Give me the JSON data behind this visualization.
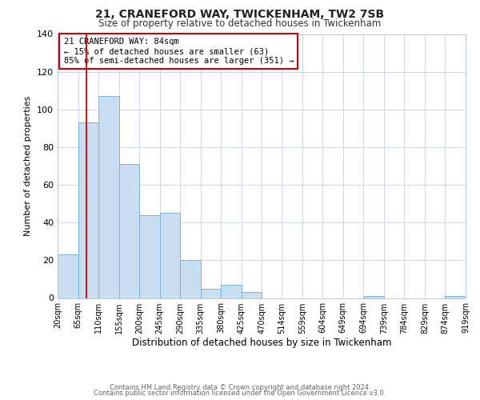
{
  "title": "21, CRANEFORD WAY, TWICKENHAM, TW2 7SB",
  "subtitle": "Size of property relative to detached houses in Twickenham",
  "xlabel": "Distribution of detached houses by size in Twickenham",
  "ylabel": "Number of detached properties",
  "bar_color": "#c9def0",
  "bar_edge_color": "#7ab4d8",
  "bins": [
    20,
    65,
    110,
    155,
    200,
    245,
    290,
    335,
    380,
    425,
    470,
    514,
    559,
    604,
    649,
    694,
    739,
    784,
    829,
    874,
    919
  ],
  "counts": [
    23,
    93,
    107,
    71,
    44,
    45,
    20,
    5,
    7,
    3,
    0,
    0,
    0,
    0,
    0,
    1,
    0,
    0,
    0,
    1
  ],
  "tick_labels": [
    "20sqm",
    "65sqm",
    "110sqm",
    "155sqm",
    "200sqm",
    "245sqm",
    "290sqm",
    "335sqm",
    "380sqm",
    "425sqm",
    "470sqm",
    "514sqm",
    "559sqm",
    "604sqm",
    "649sqm",
    "694sqm",
    "739sqm",
    "784sqm",
    "829sqm",
    "874sqm",
    "919sqm"
  ],
  "ylim": [
    0,
    140
  ],
  "yticks": [
    0,
    20,
    40,
    60,
    80,
    100,
    120,
    140
  ],
  "property_line_x": 84,
  "property_line_color": "#cc0000",
  "annotation_line1": "21 CRANEFORD WAY: 84sqm",
  "annotation_line2": "← 15% of detached houses are smaller (63)",
  "annotation_line3": "85% of semi-detached houses are larger (351) →",
  "annotation_box_color": "#ffffff",
  "annotation_box_edge": "#cc0000",
  "bg_color": "#ffffff",
  "grid_color": "#d0d8e8",
  "footer1": "Contains HM Land Registry data © Crown copyright and database right 2024.",
  "footer2": "Contains public sector information licensed under the Open Government Licence v3.0."
}
